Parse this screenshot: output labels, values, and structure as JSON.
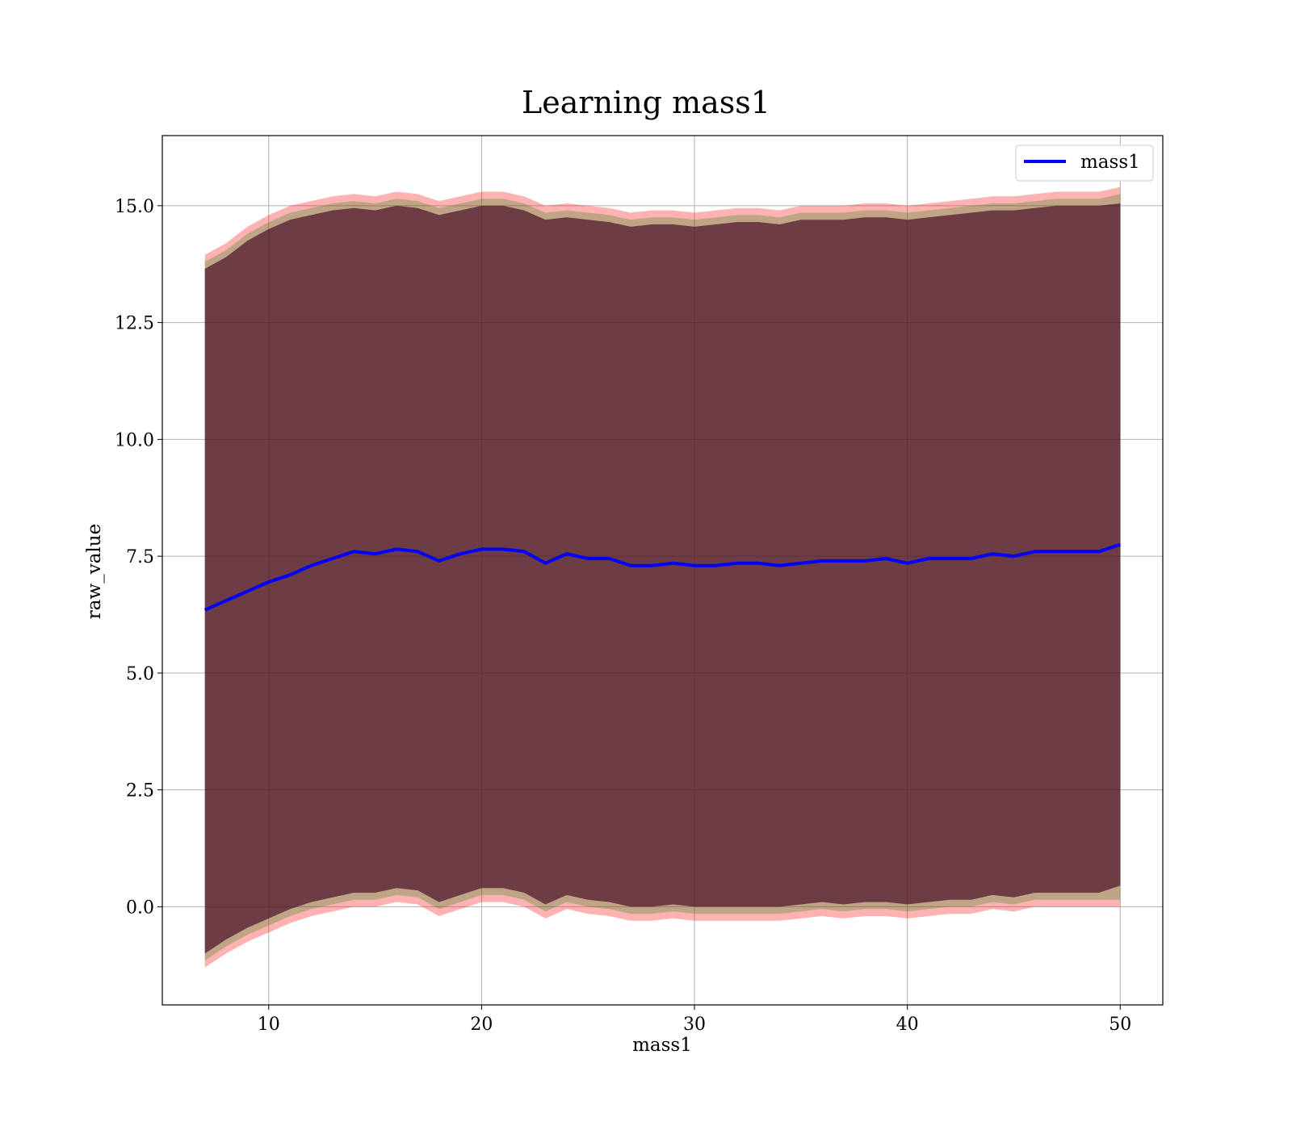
{
  "chart_data": {
    "type": "line",
    "title": "Learning mass1",
    "xlabel": "mass1",
    "ylabel": "raw_value",
    "xlim": [
      5,
      52
    ],
    "ylim": [
      -2.1,
      16.5
    ],
    "xticks": [
      10,
      20,
      30,
      40,
      50
    ],
    "xtick_labels": [
      "10",
      "20",
      "30",
      "40",
      "50"
    ],
    "yticks": [
      0.0,
      2.5,
      5.0,
      7.5,
      10.0,
      12.5,
      15.0
    ],
    "ytick_labels": [
      "0.0",
      "2.5",
      "5.0",
      "7.5",
      "10.0",
      "12.5",
      "15.0"
    ],
    "grid": true,
    "legend_position": "top-right",
    "series": [
      {
        "name": "mass1",
        "color": "#0000ff",
        "x": [
          7,
          8,
          9,
          10,
          11,
          12,
          13,
          14,
          15,
          16,
          17,
          18,
          19,
          20,
          21,
          22,
          23,
          24,
          25,
          26,
          27,
          28,
          29,
          30,
          31,
          32,
          33,
          34,
          35,
          36,
          37,
          38,
          39,
          40,
          41,
          42,
          43,
          44,
          45,
          46,
          47,
          48,
          49,
          50
        ],
        "y": [
          6.35,
          6.55,
          6.75,
          6.95,
          7.1,
          7.3,
          7.45,
          7.6,
          7.55,
          7.65,
          7.6,
          7.4,
          7.55,
          7.65,
          7.65,
          7.6,
          7.35,
          7.55,
          7.45,
          7.45,
          7.3,
          7.3,
          7.35,
          7.3,
          7.3,
          7.35,
          7.35,
          7.3,
          7.35,
          7.4,
          7.4,
          7.4,
          7.45,
          7.35,
          7.45,
          7.45,
          7.45,
          7.55,
          7.5,
          7.6,
          7.6,
          7.6,
          7.6,
          7.75
        ]
      }
    ],
    "bands": [
      {
        "color": "#ff0000",
        "opacity": 0.3,
        "upper": [
          13.95,
          14.2,
          14.55,
          14.8,
          15.0,
          15.1,
          15.2,
          15.25,
          15.2,
          15.3,
          15.25,
          15.1,
          15.2,
          15.3,
          15.3,
          15.2,
          15.0,
          15.05,
          15.0,
          14.95,
          14.85,
          14.9,
          14.9,
          14.85,
          14.9,
          14.95,
          14.95,
          14.9,
          15.0,
          15.0,
          15.0,
          15.05,
          15.05,
          15.0,
          15.05,
          15.1,
          15.15,
          15.2,
          15.2,
          15.25,
          15.3,
          15.3,
          15.3,
          15.4
        ],
        "lower": [
          -1.3,
          -1.0,
          -0.75,
          -0.55,
          -0.35,
          -0.2,
          -0.1,
          0.0,
          0.0,
          0.1,
          0.05,
          -0.2,
          -0.05,
          0.1,
          0.1,
          0.0,
          -0.25,
          -0.05,
          -0.15,
          -0.2,
          -0.3,
          -0.3,
          -0.25,
          -0.3,
          -0.3,
          -0.3,
          -0.3,
          -0.3,
          -0.25,
          -0.2,
          -0.25,
          -0.2,
          -0.2,
          -0.25,
          -0.2,
          -0.15,
          -0.15,
          -0.05,
          -0.1,
          0.0,
          0.0,
          0.0,
          0.0,
          0.0
        ]
      },
      {
        "color": "#008000",
        "opacity": 0.25,
        "upper": [
          13.8,
          14.05,
          14.4,
          14.65,
          14.85,
          14.95,
          15.05,
          15.1,
          15.05,
          15.15,
          15.1,
          14.95,
          15.05,
          15.15,
          15.15,
          15.05,
          14.85,
          14.9,
          14.85,
          14.8,
          14.7,
          14.75,
          14.75,
          14.7,
          14.75,
          14.8,
          14.8,
          14.75,
          14.85,
          14.85,
          14.85,
          14.9,
          14.9,
          14.85,
          14.9,
          14.95,
          15.0,
          15.05,
          15.05,
          15.1,
          15.15,
          15.15,
          15.15,
          15.25
        ],
        "lower": [
          -1.15,
          -0.85,
          -0.6,
          -0.4,
          -0.2,
          -0.05,
          0.05,
          0.15,
          0.15,
          0.25,
          0.2,
          -0.05,
          0.1,
          0.25,
          0.25,
          0.15,
          -0.1,
          0.1,
          0.0,
          -0.05,
          -0.15,
          -0.15,
          -0.1,
          -0.15,
          -0.15,
          -0.15,
          -0.15,
          -0.15,
          -0.1,
          -0.05,
          -0.1,
          -0.05,
          -0.05,
          -0.1,
          -0.05,
          0.0,
          0.0,
          0.1,
          0.05,
          0.15,
          0.15,
          0.15,
          0.15,
          0.15
        ]
      },
      {
        "color": "#4a0f2a",
        "opacity": 0.7,
        "upper": [
          13.65,
          13.9,
          14.25,
          14.5,
          14.7,
          14.8,
          14.9,
          14.95,
          14.9,
          15.0,
          14.95,
          14.8,
          14.9,
          15.0,
          15.0,
          14.9,
          14.7,
          14.75,
          14.7,
          14.65,
          14.55,
          14.6,
          14.6,
          14.55,
          14.6,
          14.65,
          14.65,
          14.6,
          14.7,
          14.7,
          14.7,
          14.75,
          14.75,
          14.7,
          14.75,
          14.8,
          14.85,
          14.9,
          14.9,
          14.95,
          15.0,
          15.0,
          15.0,
          15.05
        ],
        "lower": [
          -1.0,
          -0.7,
          -0.45,
          -0.25,
          -0.05,
          0.1,
          0.2,
          0.3,
          0.3,
          0.4,
          0.35,
          0.1,
          0.25,
          0.4,
          0.4,
          0.3,
          0.05,
          0.25,
          0.15,
          0.1,
          0.0,
          0.0,
          0.05,
          0.0,
          0.0,
          0.0,
          0.0,
          0.0,
          0.05,
          0.1,
          0.05,
          0.1,
          0.1,
          0.05,
          0.1,
          0.15,
          0.15,
          0.25,
          0.2,
          0.3,
          0.3,
          0.3,
          0.3,
          0.45
        ]
      }
    ]
  }
}
